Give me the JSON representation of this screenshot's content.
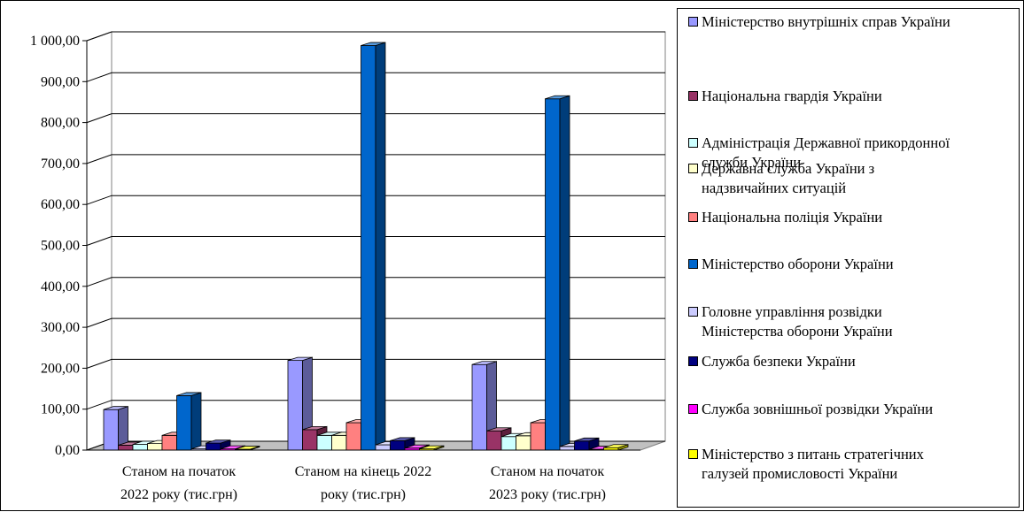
{
  "chart_data": {
    "type": "bar",
    "title": "",
    "xlabel": "",
    "ylabel": "",
    "ylim": [
      0,
      1000
    ],
    "y_ticks": [
      "0,00",
      "100,00",
      "200,00",
      "300,00",
      "400,00",
      "500,00",
      "600,00",
      "700,00",
      "800,00",
      "900,00",
      "1 000,00"
    ],
    "grid": true,
    "three_d": true,
    "legend_position": "right",
    "categories": [
      "Станом на початок 2022 року (тис.грн)",
      "Станом на кінець 2022 року (тис.грн)",
      "Станом на початок 2023 року (тис.грн)"
    ],
    "category_lines": [
      [
        "Станом на початок",
        "2022 року (тис.грн)"
      ],
      [
        "Станом на кінець 2022",
        "року (тис.грн)"
      ],
      [
        "Станом на початок",
        "2023 року (тис.грн)"
      ]
    ],
    "series": [
      {
        "name": "Міністерство внутрішніх справ України",
        "label_lines": [
          "Міністерство внутрішніх справ України"
        ],
        "color": "#9999ff",
        "values": [
          99,
          219,
          209
        ]
      },
      {
        "name": "Національна гвардія України",
        "label_lines": [
          "Національна гвардія України"
        ],
        "color": "#993366",
        "values": [
          12,
          50,
          47
        ]
      },
      {
        "name": "Адміністрація Державної прикордонної служби України",
        "label_lines": [
          "Адміністрація Державної прикордонної",
          "служби України"
        ],
        "color": "#ccffff",
        "values": [
          14,
          36,
          33
        ]
      },
      {
        "name": "Державна служба України з надзвичайних ситуацій",
        "label_lines": [
          "Державна служба України з",
          "надзвичайних ситуацій"
        ],
        "color": "#ffffcc",
        "values": [
          16,
          36,
          35
        ]
      },
      {
        "name": "Національна поліція України",
        "label_lines": [
          "Національна поліція України"
        ],
        "color": "#ff8080",
        "values": [
          36,
          67,
          67
        ]
      },
      {
        "name": "Міністерство оборони України",
        "label_lines": [
          "Міністерство оборони України"
        ],
        "color": "#0066cc",
        "values": [
          133,
          988,
          858
        ]
      },
      {
        "name": "Головне управління розвідки Міністерства оборони України",
        "label_lines": [
          "Головне управління розвідки",
          "Міністерства оборони України"
        ],
        "color": "#ccccff",
        "values": [
          3,
          13,
          9
        ]
      },
      {
        "name": "Служба безпеки України",
        "label_lines": [
          "Служба безпеки України"
        ],
        "color": "#000080",
        "values": [
          17,
          23,
          22
        ]
      },
      {
        "name": "Служба зовнішньої розвідки України",
        "label_lines": [
          "Служба зовнішньої розвідки України"
        ],
        "color": "#ff00ff",
        "values": [
          3,
          5,
          2
        ]
      },
      {
        "name": "Міністерство з питань стратегічних галузей промисловості України",
        "label_lines": [
          "Міністерство з питань стратегічних",
          "галузей промисловості України"
        ],
        "color": "#ffff00",
        "values": [
          2,
          3,
          6
        ]
      }
    ]
  }
}
